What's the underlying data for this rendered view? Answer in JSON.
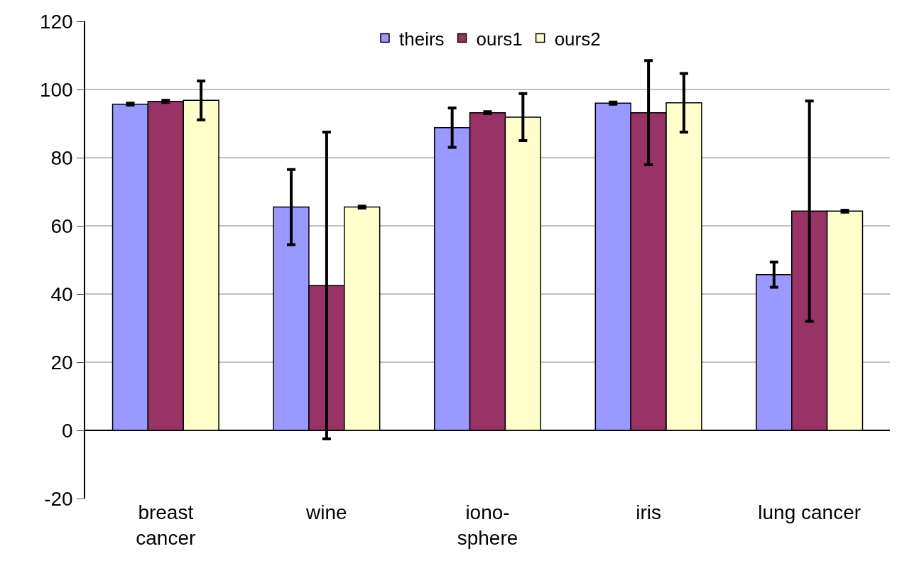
{
  "chart_data": {
    "type": "bar",
    "categories": [
      "breast\ncancer",
      "wine",
      "iono-\nsphere",
      "iris",
      "lung cancer"
    ],
    "series": [
      {
        "name": "theirs",
        "color": "#9999ff",
        "values": [
          95.7,
          65.5,
          88.8,
          96.0,
          45.7
        ],
        "errors": [
          0.3,
          11,
          5.8,
          0.3,
          3.7
        ]
      },
      {
        "name": "ours1",
        "color": "#993366",
        "values": [
          96.5,
          42.5,
          93.2,
          93.2,
          64.3
        ],
        "errors": [
          0.3,
          45,
          0.3,
          15.3,
          32.3
        ]
      },
      {
        "name": "ours2",
        "color": "#ffffcc",
        "values": [
          96.8,
          65.5,
          91.9,
          96.1,
          64.3
        ],
        "errors": [
          5.7,
          0.3,
          6.9,
          8.6,
          0.3
        ]
      }
    ],
    "ylim": [
      -20,
      120
    ],
    "yticks": [
      -20,
      0,
      20,
      40,
      60,
      80,
      100,
      120
    ],
    "grid": "y",
    "legend": "top"
  }
}
